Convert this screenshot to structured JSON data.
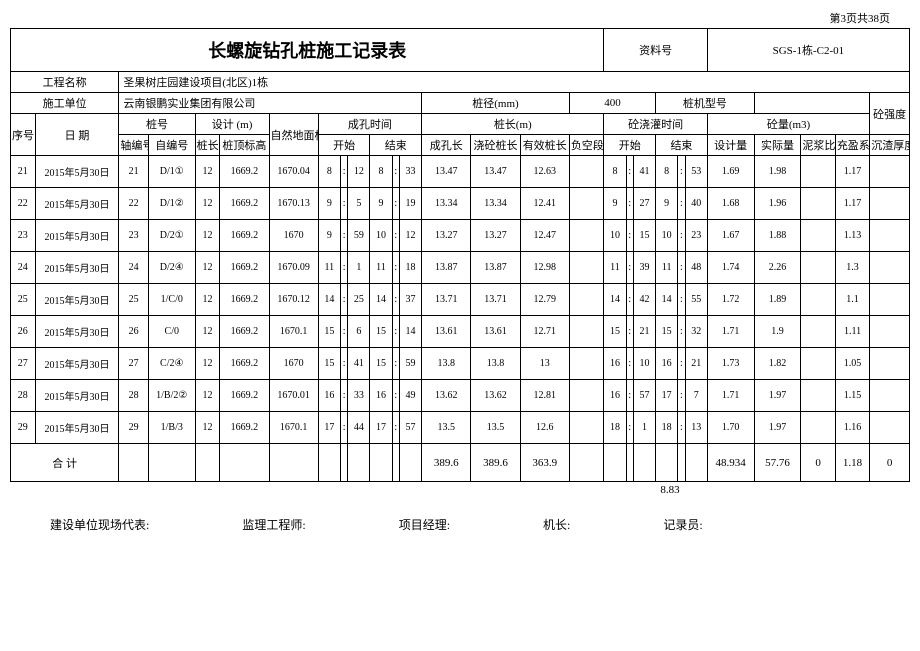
{
  "page_info": "第3页共38页",
  "title": "长螺旋钻孔桩施工记录表",
  "doc_label": "资料号",
  "doc_number": "SGS-1栋-C2-01",
  "project_name_label": "工程名称",
  "project_name": "圣果树庄园建设项目(北区)1栋",
  "construction_unit_label": "施工单位",
  "construction_unit": "云南银鹏实业集团有限公司",
  "pile_diameter_label": "桩径(mm)",
  "pile_diameter": "400",
  "pile_machine_label": "桩机型号",
  "strength_label": "砼强度",
  "headers": {
    "seq": "序号",
    "date": "日 期",
    "pile_no": "桩号",
    "design_m": "设计 (m)",
    "ground_elev": "自然地面标高(m)",
    "hole_time": "成孔时间",
    "pile_length_m": "桩长(m)",
    "concrete_time": "砼浇灌时间",
    "concrete_vol": "砼量(m3)",
    "axis_no": "轴编号",
    "self_no": "自编号",
    "pile_len": "桩长",
    "pile_top_elev": "桩顶标高",
    "start": "开始",
    "end": "结束",
    "hole_len": "成孔长",
    "pour_len": "浇砼桩长",
    "eff_len": "有效桩长",
    "neg_seg": "负空段",
    "design_vol": "设计量",
    "actual_vol": "实际量",
    "mud_ratio": "泥浆比重",
    "fill_coef": "充盈系数",
    "sediment": "沉渣厚度(m)"
  },
  "rows": [
    {
      "seq": "21",
      "date": "2015年5月30日",
      "axis": "21",
      "self": "D/1①",
      "plen": "12",
      "ptop": "1669.2",
      "ground": "1670.04",
      "s1": "8",
      "s2": "12",
      "e1": "8",
      "e2": "33",
      "hole": "13.47",
      "pour": "13.47",
      "eff": "12.63",
      "neg": "",
      "cs1": "8",
      "cs2": "41",
      "ce1": "8",
      "ce2": "53",
      "dvol": "1.69",
      "avol": "1.98",
      "mud": "",
      "fill": "1.17",
      "sed": ""
    },
    {
      "seq": "22",
      "date": "2015年5月30日",
      "axis": "22",
      "self": "D/1②",
      "plen": "12",
      "ptop": "1669.2",
      "ground": "1670.13",
      "s1": "9",
      "s2": "5",
      "e1": "9",
      "e2": "19",
      "hole": "13.34",
      "pour": "13.34",
      "eff": "12.41",
      "neg": "",
      "cs1": "9",
      "cs2": "27",
      "ce1": "9",
      "ce2": "40",
      "dvol": "1.68",
      "avol": "1.96",
      "mud": "",
      "fill": "1.17",
      "sed": ""
    },
    {
      "seq": "23",
      "date": "2015年5月30日",
      "axis": "23",
      "self": "D/2①",
      "plen": "12",
      "ptop": "1669.2",
      "ground": "1670",
      "s1": "9",
      "s2": "59",
      "e1": "10",
      "e2": "12",
      "hole": "13.27",
      "pour": "13.27",
      "eff": "12.47",
      "neg": "",
      "cs1": "10",
      "cs2": "15",
      "ce1": "10",
      "ce2": "23",
      "dvol": "1.67",
      "avol": "1.88",
      "mud": "",
      "fill": "1.13",
      "sed": ""
    },
    {
      "seq": "24",
      "date": "2015年5月30日",
      "axis": "24",
      "self": "D/2④",
      "plen": "12",
      "ptop": "1669.2",
      "ground": "1670.09",
      "s1": "11",
      "s2": "1",
      "e1": "11",
      "e2": "18",
      "hole": "13.87",
      "pour": "13.87",
      "eff": "12.98",
      "neg": "",
      "cs1": "11",
      "cs2": "39",
      "ce1": "11",
      "ce2": "48",
      "dvol": "1.74",
      "avol": "2.26",
      "mud": "",
      "fill": "1.3",
      "sed": ""
    },
    {
      "seq": "25",
      "date": "2015年5月30日",
      "axis": "25",
      "self": "1/C/0",
      "plen": "12",
      "ptop": "1669.2",
      "ground": "1670.12",
      "s1": "14",
      "s2": "25",
      "e1": "14",
      "e2": "37",
      "hole": "13.71",
      "pour": "13.71",
      "eff": "12.79",
      "neg": "",
      "cs1": "14",
      "cs2": "42",
      "ce1": "14",
      "ce2": "55",
      "dvol": "1.72",
      "avol": "1.89",
      "mud": "",
      "fill": "1.1",
      "sed": ""
    },
    {
      "seq": "26",
      "date": "2015年5月30日",
      "axis": "26",
      "self": "C/0",
      "plen": "12",
      "ptop": "1669.2",
      "ground": "1670.1",
      "s1": "15",
      "s2": "6",
      "e1": "15",
      "e2": "14",
      "hole": "13.61",
      "pour": "13.61",
      "eff": "12.71",
      "neg": "",
      "cs1": "15",
      "cs2": "21",
      "ce1": "15",
      "ce2": "32",
      "dvol": "1.71",
      "avol": "1.9",
      "mud": "",
      "fill": "1.11",
      "sed": ""
    },
    {
      "seq": "27",
      "date": "2015年5月30日",
      "axis": "27",
      "self": "C/2④",
      "plen": "12",
      "ptop": "1669.2",
      "ground": "1670",
      "s1": "15",
      "s2": "41",
      "e1": "15",
      "e2": "59",
      "hole": "13.8",
      "pour": "13.8",
      "eff": "13",
      "neg": "",
      "cs1": "16",
      "cs2": "10",
      "ce1": "16",
      "ce2": "21",
      "dvol": "1.73",
      "avol": "1.82",
      "mud": "",
      "fill": "1.05",
      "sed": ""
    },
    {
      "seq": "28",
      "date": "2015年5月30日",
      "axis": "28",
      "self": "1/B/2②",
      "plen": "12",
      "ptop": "1669.2",
      "ground": "1670.01",
      "s1": "16",
      "s2": "33",
      "e1": "16",
      "e2": "49",
      "hole": "13.62",
      "pour": "13.62",
      "eff": "12.81",
      "neg": "",
      "cs1": "16",
      "cs2": "57",
      "ce1": "17",
      "ce2": "7",
      "dvol": "1.71",
      "avol": "1.97",
      "mud": "",
      "fill": "1.15",
      "sed": ""
    },
    {
      "seq": "29",
      "date": "2015年5月30日",
      "axis": "29",
      "self": "1/B/3",
      "plen": "12",
      "ptop": "1669.2",
      "ground": "1670.1",
      "s1": "17",
      "s2": "44",
      "e1": "17",
      "e2": "57",
      "hole": "13.5",
      "pour": "13.5",
      "eff": "12.6",
      "neg": "",
      "cs1": "18",
      "cs2": "1",
      "ce1": "18",
      "ce2": "13",
      "dvol": "1.70",
      "avol": "1.97",
      "mud": "",
      "fill": "1.16",
      "sed": ""
    }
  ],
  "total": {
    "label": "合   计",
    "hole": "389.6",
    "pour": "389.6",
    "eff": "363.9",
    "dvol": "48.934",
    "avol": "57.76",
    "mud": "0",
    "fill": "1.18",
    "sed": "0"
  },
  "extra_num": "8.83",
  "footer": {
    "f1": "建设单位现场代表:",
    "f2": "监理工程师:",
    "f3": "项目经理:",
    "f4": "机长:",
    "f5": "记录员:"
  }
}
